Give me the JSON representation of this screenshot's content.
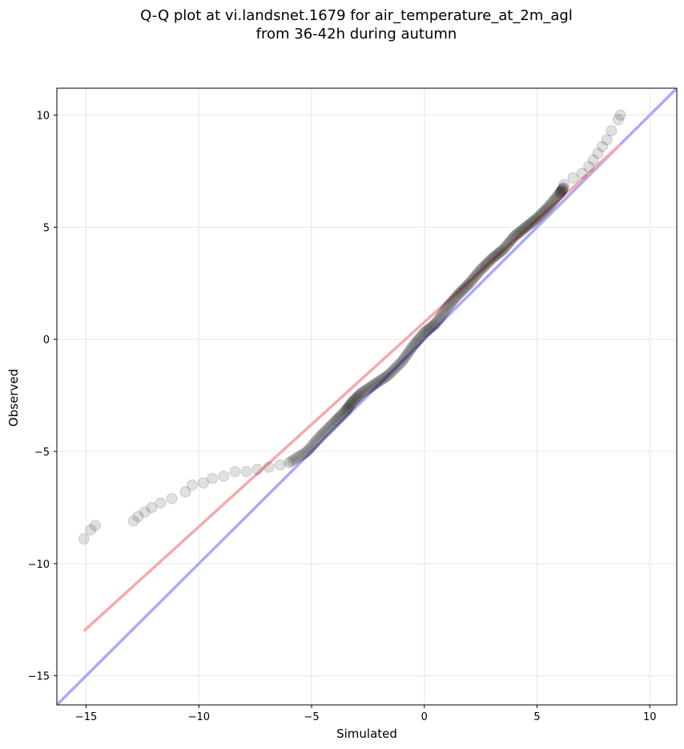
{
  "chart_data": {
    "type": "scatter",
    "title_line1": "Q-Q plot at vi.landsnet.1679 for air_temperature_at_2m_agl",
    "title_line2": "from 36-42h during autumn",
    "xlabel": "Simulated",
    "ylabel": "Observed",
    "xlim": [
      -16.3,
      11.2
    ],
    "ylim": [
      -16.3,
      11.2
    ],
    "xticks": [
      -15,
      -10,
      -5,
      0,
      5,
      10
    ],
    "yticks": [
      -15,
      -10,
      -5,
      0,
      5,
      10
    ],
    "xtick_labels": [
      "−15",
      "−10",
      "−5",
      "0",
      "5",
      "10"
    ],
    "ytick_labels": [
      "−15",
      "−10",
      "−5",
      "0",
      "5",
      "10"
    ],
    "grid": true,
    "colors": {
      "identity_line": "#aaaaff",
      "fit_line": "#f6aaaa",
      "points": "#000000"
    },
    "identity_line": {
      "x": [
        -16.3,
        11.2
      ],
      "y": [
        -16.3,
        11.2
      ]
    },
    "fit_line": {
      "x": [
        -15.1,
        8.7
      ],
      "y": [
        -13.0,
        8.7
      ]
    },
    "points_sparse": [
      [
        -15.1,
        -8.9
      ],
      [
        -14.8,
        -8.5
      ],
      [
        -14.6,
        -8.3
      ],
      [
        -12.9,
        -8.1
      ],
      [
        -12.7,
        -7.9
      ],
      [
        -12.4,
        -7.7
      ],
      [
        -12.1,
        -7.5
      ],
      [
        -11.7,
        -7.3
      ],
      [
        -11.2,
        -7.1
      ],
      [
        -10.6,
        -6.8
      ],
      [
        -10.3,
        -6.5
      ],
      [
        -9.8,
        -6.4
      ],
      [
        -9.4,
        -6.2
      ],
      [
        -8.9,
        -6.1
      ],
      [
        -8.4,
        -5.9
      ],
      [
        -7.9,
        -5.9
      ],
      [
        -7.4,
        -5.8
      ],
      [
        -6.9,
        -5.7
      ],
      [
        -6.4,
        -5.6
      ],
      [
        6.2,
        6.9
      ],
      [
        6.6,
        7.2
      ],
      [
        7.0,
        7.4
      ],
      [
        7.3,
        7.7
      ],
      [
        7.5,
        8.0
      ],
      [
        7.7,
        8.3
      ],
      [
        7.9,
        8.6
      ],
      [
        8.1,
        8.9
      ],
      [
        8.3,
        9.3
      ],
      [
        8.6,
        9.8
      ],
      [
        8.7,
        10.0
      ]
    ],
    "points_dense_path": [
      [
        -6.0,
        -5.5
      ],
      [
        -5.2,
        -5.0
      ],
      [
        -4.6,
        -4.3
      ],
      [
        -4.0,
        -3.7
      ],
      [
        -3.5,
        -3.2
      ],
      [
        -3.2,
        -2.8
      ],
      [
        -2.8,
        -2.4
      ],
      [
        -2.2,
        -2.0
      ],
      [
        -1.6,
        -1.6
      ],
      [
        -1.0,
        -1.0
      ],
      [
        -0.5,
        -0.3
      ],
      [
        0.0,
        0.3
      ],
      [
        0.5,
        0.7
      ],
      [
        1.0,
        1.4
      ],
      [
        1.5,
        2.0
      ],
      [
        2.0,
        2.5
      ],
      [
        2.5,
        3.1
      ],
      [
        3.0,
        3.6
      ],
      [
        3.5,
        4.0
      ],
      [
        4.0,
        4.6
      ],
      [
        4.5,
        5.0
      ],
      [
        5.0,
        5.4
      ],
      [
        5.5,
        5.9
      ],
      [
        6.0,
        6.5
      ],
      [
        6.2,
        6.8
      ]
    ]
  }
}
